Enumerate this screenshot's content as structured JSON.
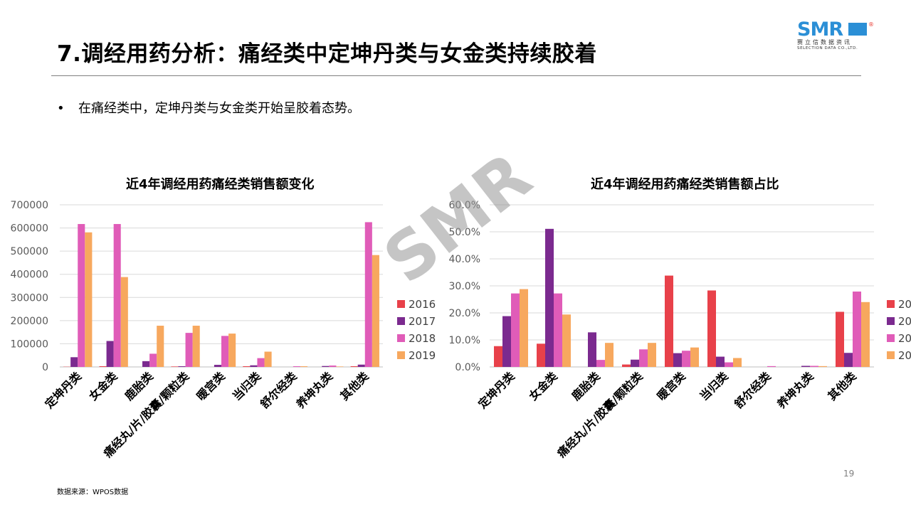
{
  "header": {
    "title": "7.调经用药分析：痛经类中定坤丹类与女金类持续胶着"
  },
  "logo": {
    "main": "SMR",
    "registered": "®",
    "sub_cn": "赛立信数据资讯",
    "sub_en": "SELECTION DATA CO.,LTD."
  },
  "bullet": {
    "symbol": "•",
    "text": "在痛经类中，定坤丹类与女金类开始呈胶着态势。"
  },
  "watermark": "SMR",
  "page_number": "19",
  "source_note": "数据来源：WPOS数据",
  "colors": {
    "2016": "#e8414a",
    "2017": "#7b2a8f",
    "2018": "#e05cb8",
    "2019": "#f7a85e"
  },
  "chart_data": [
    {
      "type": "bar",
      "title": "近4年调经用药痛经类销售额变化",
      "categories": [
        "定坤丹类",
        "女金类",
        "鹿胎类",
        "痛经丸/片/胶囊/颗粒类",
        "暖宫类",
        "当归类",
        "舒尔经类",
        "养坤丸类",
        "其他类"
      ],
      "series": [
        {
          "name": "2016",
          "values": [
            1000,
            3000,
            0,
            2000,
            0,
            3000,
            0,
            0,
            3000
          ]
        },
        {
          "name": "2017",
          "values": [
            42000,
            112000,
            25000,
            3000,
            9000,
            7000,
            0,
            4000,
            10000
          ]
        },
        {
          "name": "2018",
          "values": [
            617000,
            617000,
            57000,
            147000,
            134000,
            38000,
            3000,
            6000,
            625000
          ]
        },
        {
          "name": "2019",
          "values": [
            581000,
            388000,
            178000,
            178000,
            144000,
            66000,
            3000,
            2000,
            483000
          ]
        }
      ],
      "yticks": [
        "0",
        "100000",
        "200000",
        "300000",
        "400000",
        "500000",
        "600000",
        "700000"
      ],
      "ylim": [
        0,
        700000
      ],
      "legend": "right",
      "grid": true
    },
    {
      "type": "bar",
      "title": "近4年调经用药痛经类销售额占比",
      "categories": [
        "定坤丹类",
        "女金类",
        "鹿胎类",
        "痛经丸/片/胶囊/颗粒类",
        "暖宫类",
        "当归类",
        "舒尔经类",
        "养坤丸类",
        "其他类"
      ],
      "series": [
        {
          "name": "20",
          "values": [
            7.7,
            8.6,
            0,
            0.9,
            33.8,
            28.3,
            0,
            0,
            20.4
          ]
        },
        {
          "name": "20",
          "values": [
            18.8,
            51.1,
            12.8,
            2.7,
            5.1,
            3.8,
            0,
            0.4,
            5.2
          ]
        },
        {
          "name": "20",
          "values": [
            27.2,
            27.2,
            2.6,
            6.5,
            6.0,
            1.7,
            0.3,
            0.4,
            27.9
          ]
        },
        {
          "name": "20",
          "values": [
            28.8,
            19.4,
            8.9,
            8.9,
            7.2,
            3.3,
            0,
            0.3,
            24.0
          ]
        }
      ],
      "yticks": [
        "0.0%",
        "10.0%",
        "20.0%",
        "30.0%",
        "40.0%",
        "50.0%",
        "60.0%"
      ],
      "ylim": [
        0,
        60
      ],
      "legend": "right",
      "grid": true
    }
  ]
}
